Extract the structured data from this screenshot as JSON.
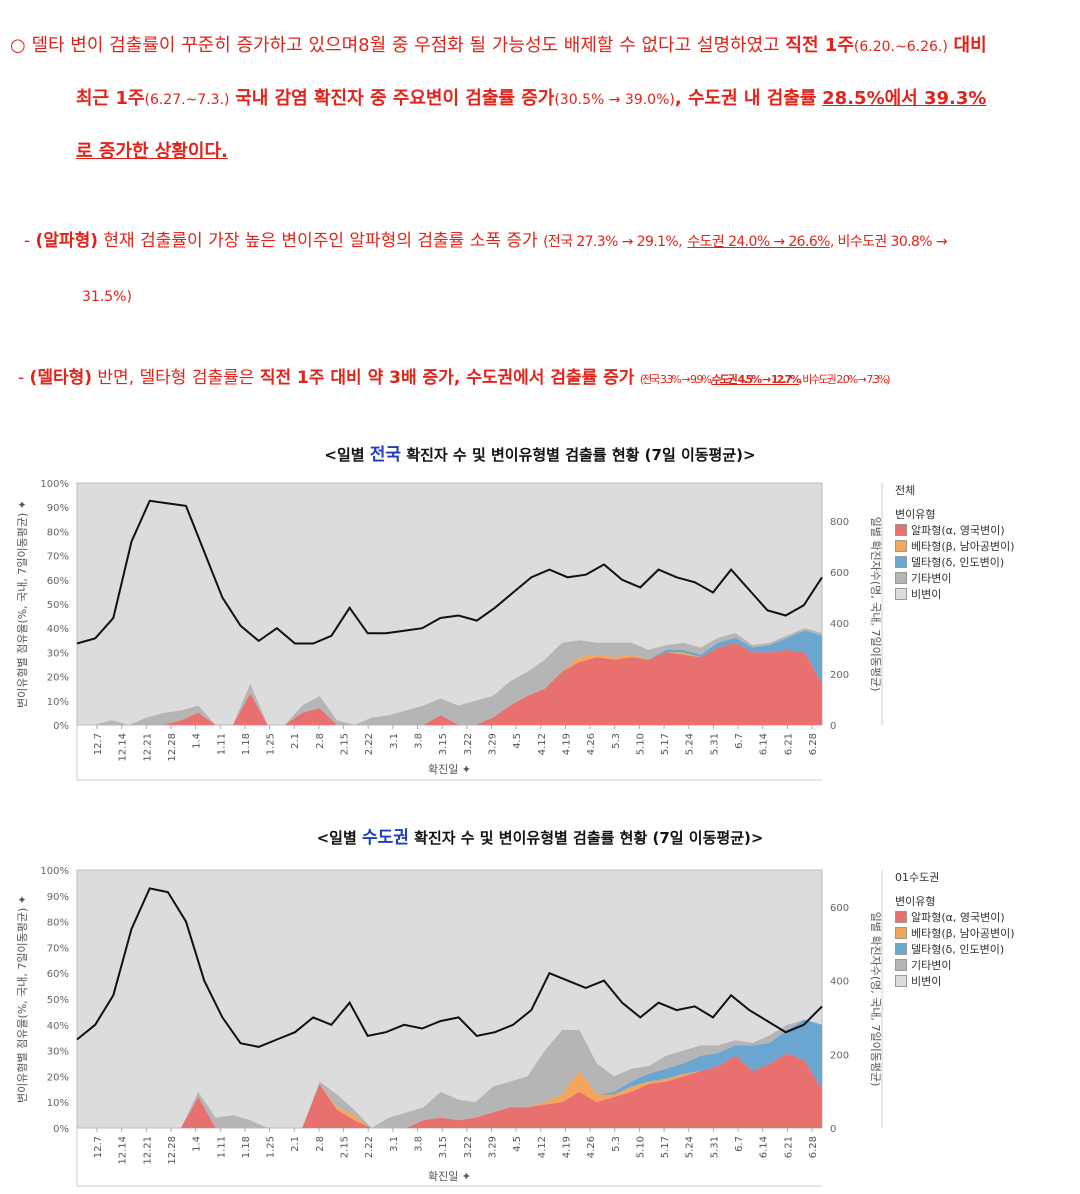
{
  "paragraph1": {
    "bullet": "○",
    "l1_a": "델타 변이 검출률이 꾸준히 증가하고 있으며8월 중 우점화 될 가능성도 배제할 수 없다고 설명하였고",
    "l1_b": "직전 1주",
    "l1_c": "(6.20.~6.26.)",
    "l1_d": "대비",
    "l2_a": "최근 1주",
    "l2_b": "(6.27.~7.3.)",
    "l2_c": "국내 감염 확진자 중 주요변이 검출률 증가",
    "l2_d": "(30.5% → 39.0%)",
    "l2_e": ", 수도권 내 검출률",
    "l2_f": "28.5%에서 39.3%",
    "l3_a": "로 증가한 상황이다."
  },
  "paragraph2": {
    "dash": "-",
    "label": "(알파형)",
    "text1": "현재 검출률이 가장 높은 변이주인 알파형의 검출률 소폭 증가",
    "text2": "(전국 27.3% → 29.1%,",
    "text3": "수도권 24.0% → 26.6%",
    "text4": ", 비수도권 30.8% →",
    "text5": "31.5%)"
  },
  "paragraph3": {
    "dash": "-",
    "label": "(델타형)",
    "text1": "반면, 델타형 검출률은",
    "text2": "직전 1주 대비 약 3배 증가, 수도권에서 검출률 증가",
    "text3": "(전국 3.3% → 9.9%,",
    "text4": "수도권 4.5% → 12.7%",
    "text5": ", 비수도권 2.0% → 7.3%)"
  },
  "colors": {
    "red": "#e2231a",
    "alpha": "#e8706e",
    "beta": "#f5a55a",
    "delta": "#6aa6d0",
    "other": "#b5b5b5",
    "nonvariant": "#dcdcdc"
  },
  "chart_data": [
    {
      "type": "area",
      "title_pre": "<일별",
      "title_highlight": "전국",
      "title_post": "확진자 수 및 변이유형별 검출률 현황 (7일 이동평균)>",
      "ylabel": "변이유형별 점유율(%, 국내, 7일이동평균)",
      "y2label": "일별 확진자수(명, 국내, 7일이동평균)",
      "xlabel": "확진일",
      "pin": "✦",
      "x_ticks": [
        "12.7",
        "12.14",
        "12.21",
        "12.28",
        "1.4",
        "1.11",
        "1.18",
        "1.25",
        "2.1",
        "2.8",
        "2.15",
        "2.22",
        "3.1",
        "3.8",
        "3.15",
        "3.22",
        "3.29",
        "4.5",
        "4.12",
        "4.19",
        "4.26",
        "5.3",
        "5.10",
        "5.17",
        "5.24",
        "5.31",
        "6.7",
        "6.14",
        "6.21",
        "6.28"
      ],
      "y_ticks": [
        "100%",
        "90%",
        "80%",
        "70%",
        "60%",
        "50%",
        "40%",
        "30%",
        "20%",
        "10%",
        "0%"
      ],
      "ylim": [
        0,
        100
      ],
      "y2_ticks": [
        "800",
        "600",
        "400",
        "200",
        "0"
      ],
      "y2lim": [
        0,
        950
      ],
      "legend_title": "전체",
      "legend_subtitle": "변이유형",
      "legend": [
        "알파형(α, 영국변이)",
        "베타형(β, 남아공변이)",
        "델타형(δ, 인도변이)",
        "기타변이",
        "비변이"
      ],
      "series": [
        {
          "name": "알파형",
          "values": [
            0,
            0,
            0,
            0,
            0,
            0,
            2,
            5,
            0,
            0,
            13,
            0,
            0,
            5,
            7,
            0,
            0,
            0,
            0,
            0,
            0,
            4,
            0,
            0,
            3,
            8,
            12,
            15,
            22,
            26,
            28,
            27,
            28,
            27,
            30,
            29,
            28,
            32,
            34,
            30,
            30,
            31,
            30,
            17
          ]
        },
        {
          "name": "베타형",
          "values": [
            0,
            0,
            0,
            0,
            0,
            0,
            0,
            0,
            0,
            0,
            0,
            0,
            0,
            0,
            0,
            0,
            0,
            0,
            0,
            0,
            0,
            0,
            0,
            0,
            0,
            0,
            0,
            0,
            0,
            2,
            1,
            1,
            1,
            0,
            0,
            1,
            0,
            0,
            0,
            0,
            0,
            0,
            0,
            0
          ]
        },
        {
          "name": "델타형",
          "values": [
            0,
            0,
            0,
            0,
            0,
            0,
            0,
            0,
            0,
            0,
            0,
            0,
            0,
            0,
            0,
            0,
            0,
            0,
            0,
            0,
            0,
            0,
            0,
            0,
            0,
            0,
            0,
            0,
            0,
            0,
            0,
            0,
            0,
            0,
            1,
            1,
            1,
            2,
            2,
            2,
            3,
            5,
            9,
            20
          ]
        },
        {
          "name": "기타변이",
          "values": [
            0,
            0,
            2,
            0,
            3,
            5,
            4,
            3,
            0,
            0,
            4,
            0,
            0,
            3,
            5,
            2,
            0,
            3,
            4,
            6,
            8,
            7,
            8,
            10,
            9,
            10,
            10,
            12,
            12,
            7,
            5,
            6,
            5,
            4,
            2,
            3,
            3,
            2,
            2,
            1,
            1,
            1,
            1,
            1
          ]
        }
      ],
      "daily_cases": [
        320,
        340,
        420,
        720,
        880,
        870,
        860,
        680,
        500,
        390,
        330,
        380,
        320,
        320,
        350,
        460,
        360,
        360,
        370,
        380,
        420,
        430,
        410,
        460,
        520,
        580,
        610,
        580,
        590,
        630,
        570,
        540,
        610,
        580,
        560,
        520,
        610,
        530,
        450,
        430,
        470,
        580
      ]
    },
    {
      "type": "area",
      "title_pre": "<일별",
      "title_highlight": "수도권",
      "title_post": "확진자 수 및 변이유형별 검출률 현황 (7일 이동평균)>",
      "ylabel": "변이유형별 점유율(%, 국내, 7일이동평균)",
      "y2label": "일별 확진자수(명, 국내, 7일이동평균)",
      "xlabel": "확진일",
      "pin": "✦",
      "x_ticks": [
        "12.7",
        "12.14",
        "12.21",
        "12.28",
        "1.4",
        "1.11",
        "1.18",
        "1.25",
        "2.1",
        "2.8",
        "2.15",
        "2.22",
        "3.1",
        "3.8",
        "3.15",
        "3.22",
        "3.29",
        "4.5",
        "4.12",
        "4.19",
        "4.26",
        "5.3",
        "5.10",
        "5.17",
        "5.24",
        "5.31",
        "6.7",
        "6.14",
        "6.21",
        "6.28"
      ],
      "y_ticks": [
        "100%",
        "90%",
        "80%",
        "70%",
        "60%",
        "50%",
        "40%",
        "30%",
        "20%",
        "10%",
        "0%"
      ],
      "ylim": [
        0,
        100
      ],
      "y2_ticks": [
        "600",
        "400",
        "200",
        "0"
      ],
      "y2lim": [
        0,
        700
      ],
      "legend_title": "01수도권",
      "legend_subtitle": "변이유형",
      "legend": [
        "알파형(α, 영국변이)",
        "베타형(β, 남아공변이)",
        "델타형(δ, 인도변이)",
        "기타변이",
        "비변이"
      ],
      "series": [
        {
          "name": "알파형",
          "values": [
            0,
            0,
            0,
            0,
            0,
            0,
            0,
            12,
            0,
            0,
            0,
            0,
            0,
            0,
            17,
            7,
            3,
            0,
            0,
            0,
            3,
            4,
            3,
            4,
            6,
            8,
            8,
            9,
            10,
            14,
            10,
            12,
            14,
            17,
            18,
            20,
            22,
            24,
            28,
            22,
            25,
            29,
            26,
            15
          ]
        },
        {
          "name": "베타형",
          "values": [
            0,
            0,
            0,
            0,
            0,
            0,
            0,
            0,
            0,
            0,
            0,
            0,
            0,
            0,
            0,
            1,
            2,
            0,
            0,
            0,
            0,
            0,
            0,
            0,
            0,
            0,
            0,
            1,
            3,
            8,
            3,
            1,
            2,
            1,
            1,
            1,
            0,
            0,
            0,
            0,
            0,
            0,
            0,
            0
          ]
        },
        {
          "name": "델타형",
          "values": [
            0,
            0,
            0,
            0,
            0,
            0,
            0,
            0,
            0,
            0,
            0,
            0,
            0,
            0,
            0,
            0,
            0,
            0,
            0,
            0,
            0,
            0,
            0,
            0,
            0,
            0,
            0,
            0,
            0,
            0,
            0,
            1,
            2,
            3,
            4,
            4,
            6,
            5,
            4,
            10,
            8,
            9,
            16,
            25
          ]
        },
        {
          "name": "기타변이",
          "values": [
            0,
            0,
            0,
            0,
            0,
            0,
            0,
            2,
            4,
            5,
            3,
            0,
            0,
            0,
            1,
            5,
            2,
            0,
            4,
            6,
            5,
            10,
            8,
            6,
            10,
            10,
            12,
            20,
            25,
            16,
            12,
            6,
            5,
            3,
            5,
            5,
            4,
            3,
            2,
            1,
            3,
            2,
            0,
            0
          ]
        }
      ],
      "daily_cases": [
        240,
        280,
        360,
        540,
        650,
        640,
        560,
        400,
        300,
        230,
        220,
        240,
        260,
        300,
        280,
        340,
        250,
        260,
        280,
        270,
        290,
        300,
        250,
        260,
        280,
        320,
        420,
        400,
        380,
        400,
        340,
        300,
        340,
        320,
        330,
        300,
        360,
        320,
        290,
        260,
        280,
        330
      ]
    }
  ]
}
